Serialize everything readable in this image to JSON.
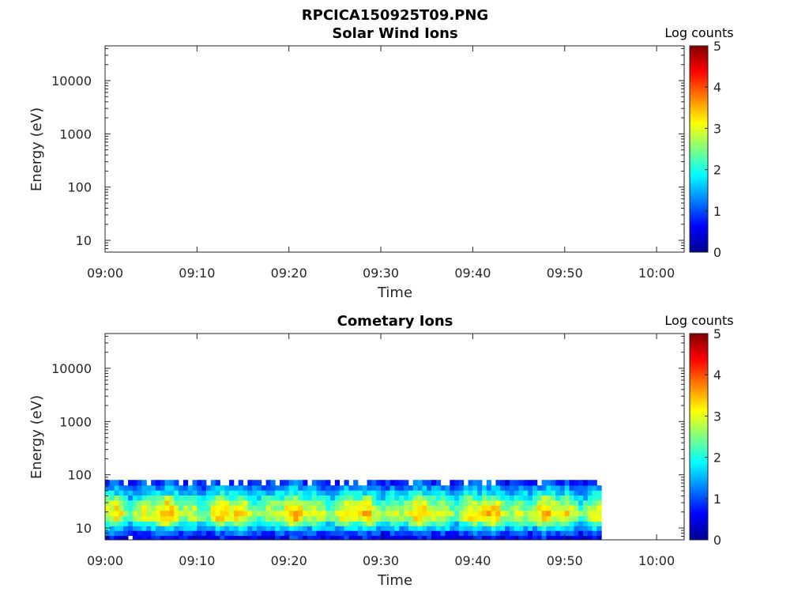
{
  "figure_title": "RPCICA150925T09.PNG",
  "colormap": "jet",
  "chart_data": [
    {
      "type": "heatmap",
      "title": "Solar Wind Ions",
      "xlabel": "Time",
      "ylabel": "Energy (eV)",
      "yscale": "log",
      "ylim": [
        6,
        45000
      ],
      "xlim": [
        "09:00",
        "10:03"
      ],
      "x_ticks": [
        "09:00",
        "09:10",
        "09:20",
        "09:30",
        "09:40",
        "09:50",
        "10:00"
      ],
      "y_ticks": [
        "10",
        "100",
        "1000",
        "10000"
      ],
      "colorbar": {
        "label": "Log counts",
        "ticks": [
          "0",
          "1",
          "2",
          "3",
          "4",
          "5"
        ],
        "range": [
          0,
          5
        ]
      },
      "data_coverage": "none"
    },
    {
      "type": "heatmap",
      "title": "Cometary Ions",
      "xlabel": "Time",
      "ylabel": "Energy (eV)",
      "yscale": "log",
      "ylim": [
        6,
        45000
      ],
      "xlim": [
        "09:00",
        "10:03"
      ],
      "x_ticks": [
        "09:00",
        "09:10",
        "09:20",
        "09:30",
        "09:40",
        "09:50",
        "10:00"
      ],
      "y_ticks": [
        "10",
        "100",
        "1000",
        "10000"
      ],
      "colorbar": {
        "label": "Log counts",
        "ticks": [
          "0",
          "1",
          "2",
          "3",
          "4",
          "5"
        ],
        "range": [
          0,
          5
        ]
      },
      "data_time_range": [
        "09:00",
        "09:54"
      ],
      "data_energy_range_eV": [
        6,
        80
      ],
      "time_resolution_min": 0.5,
      "energy_bins_eV": [
        6.5,
        8,
        10,
        12,
        15,
        19,
        24,
        30,
        37,
        46,
        57,
        70
      ],
      "typical_log_counts_by_bin": [
        0.6,
        1.0,
        1.6,
        2.2,
        2.8,
        3.0,
        2.8,
        2.5,
        2.1,
        1.7,
        1.3,
        0.9
      ]
    }
  ]
}
